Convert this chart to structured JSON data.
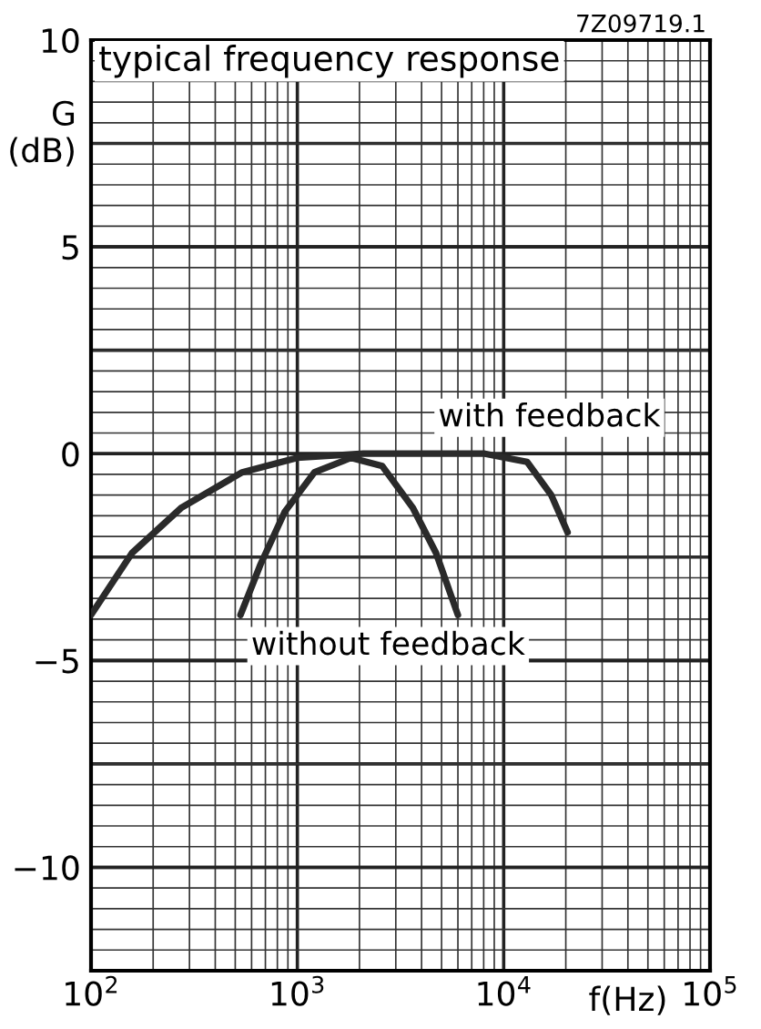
{
  "chart_data": {
    "type": "line",
    "title": "typical frequency response",
    "xlabel": "f(Hz)",
    "ylabel": "G\n(dB)",
    "annotations": [
      "7Z09719.1"
    ],
    "log": "x",
    "grid": true,
    "legend": false,
    "marker": "none",
    "line_style": "solid",
    "xlim": [
      100,
      100000
    ],
    "ylim": [
      -12.5,
      10
    ],
    "xticks": [
      {
        "value": 100,
        "label": "10$^{2}$"
      },
      {
        "value": 1000,
        "label": "10$^{3}$"
      },
      {
        "value": 10000,
        "label": "10$^{4}$"
      },
      {
        "value": 100000,
        "label": "10$^{5}$"
      }
    ],
    "yticks": [
      {
        "value": -10,
        "label": "−10"
      },
      {
        "value": -5,
        "label": "−5"
      },
      0,
      5,
      10
    ],
    "series": [
      {
        "name": "with feedback",
        "color": "#2a2a2a",
        "x": [
          100,
          158,
          275,
          540,
          1000,
          2090,
          8100,
          13000,
          17000,
          20400
        ],
        "values": [
          -3.9,
          -2.4,
          -1.3,
          -0.45,
          -0.1,
          0,
          0,
          -0.2,
          -1.0,
          -1.9
        ]
      },
      {
        "name": "without feedback",
        "color": "#2a2a2a",
        "x": [
          530,
          660,
          870,
          1210,
          1820,
          2580,
          3620,
          4700,
          6000
        ],
        "values": [
          -3.9,
          -2.7,
          -1.4,
          -0.45,
          -0.1,
          -0.3,
          -1.3,
          -2.4,
          -3.9
        ]
      }
    ]
  }
}
